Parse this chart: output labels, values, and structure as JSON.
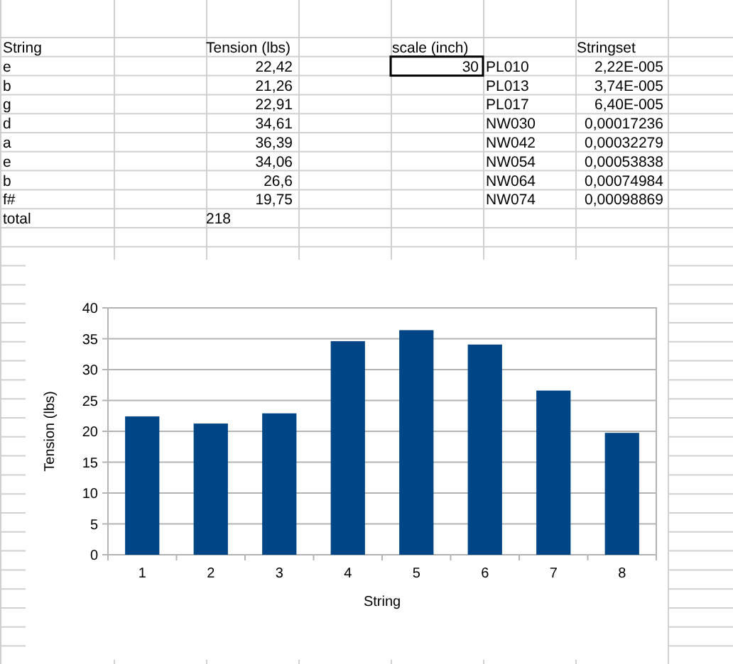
{
  "chart_data": [
    {
      "type": "other",
      "annotations": [
        "String",
        "Tension (lbs)",
        "scale (inch)",
        "Stringset",
        "e",
        "22,42",
        "30",
        "PL010",
        "2,22E-005",
        "b",
        "21,26",
        "PL013",
        "3,74E-005",
        "g",
        "22,91",
        "PL017",
        "6,40E-005",
        "d",
        "34,61",
        "NW030",
        "0,00017236",
        "a",
        "36,39",
        "NW042",
        "0,00032279",
        "e",
        "34,06",
        "NW054",
        "0,00053838",
        "b",
        "26,6",
        "NW064",
        "0,00074984",
        "f#",
        "19,75",
        "NW074",
        "0,00098869",
        "total",
        "218"
      ]
    },
    {
      "type": "bar",
      "xlabel": "String",
      "ylabel": "Tension (lbs)",
      "categories": [
        "1",
        "2",
        "3",
        "4",
        "5",
        "6",
        "7",
        "8"
      ],
      "values": [
        22.42,
        21.26,
        22.91,
        34.61,
        36.39,
        34.06,
        26.6,
        19.75
      ],
      "color": "#004586",
      "ylim": [
        0,
        40
      ],
      "yticks": [
        0,
        5,
        10,
        15,
        20,
        25,
        30,
        35,
        40
      ],
      "grid": "y"
    }
  ]
}
